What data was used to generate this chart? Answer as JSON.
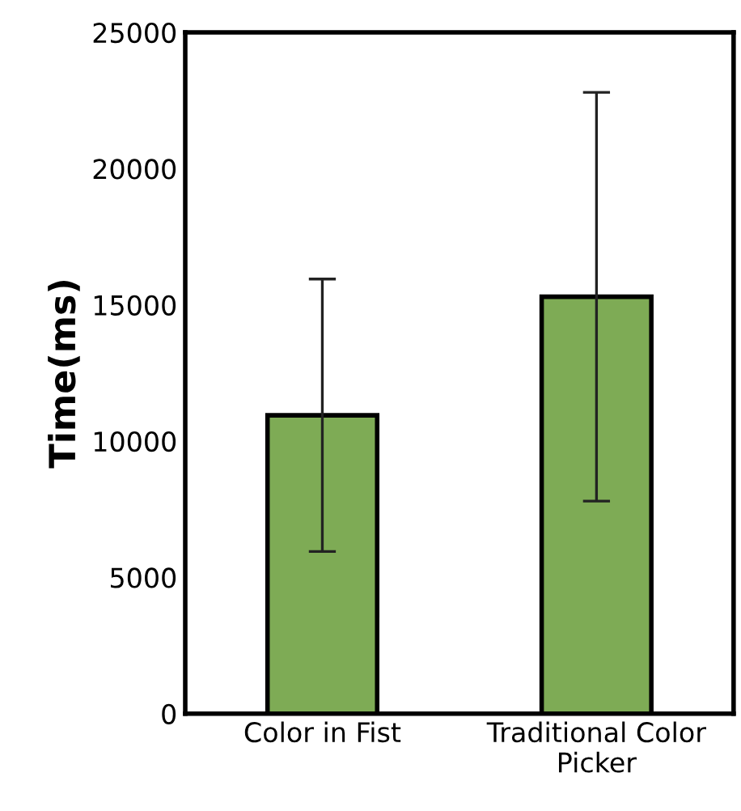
{
  "chart_data": {
    "type": "bar",
    "ylabel": "Time(ms)",
    "categories": [
      "Color in Fist",
      "Traditional Color\nPicker"
    ],
    "values": [
      10950,
      15300
    ],
    "errors": [
      5000,
      7500
    ],
    "color": "#7eab55",
    "ylim": [
      0,
      25000
    ],
    "yticks": [
      0,
      5000,
      10000,
      15000,
      20000,
      25000
    ],
    "grid": false,
    "legend": false
  }
}
